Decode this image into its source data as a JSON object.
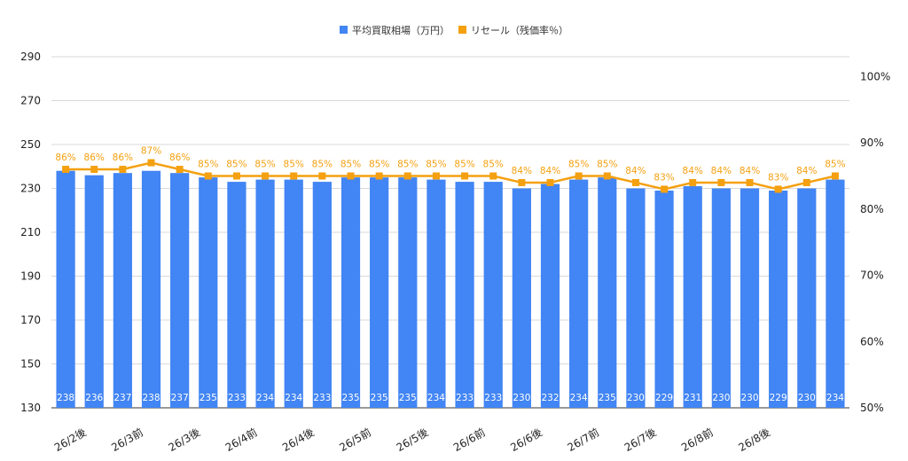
{
  "chart_data": {
    "type": "bar+line",
    "legend": {
      "placement": "top-center",
      "bar_label": "平均買取相場（万円）",
      "line_label": "リセール（残価率％）"
    },
    "x_tick_labels": [
      "26/2後",
      "26/3前",
      "26/3後",
      "26/4前",
      "26/4後",
      "26/5前",
      "26/5後",
      "26/6前",
      "26/6後",
      "26/7前",
      "26/7後",
      "26/8前",
      "26/8後"
    ],
    "left_axis": {
      "ticks": [
        "290",
        "270",
        "250",
        "230",
        "210",
        "190",
        "170",
        "150",
        "130"
      ],
      "ylim": [
        130,
        290
      ]
    },
    "right_axis": {
      "ticks": [
        "100%",
        "90%",
        "80%",
        "70%",
        "60%",
        "50%"
      ],
      "ylim": [
        50,
        103
      ]
    },
    "series": [
      {
        "name": "平均買取相場（万円）",
        "kind": "bar",
        "color": "#4285f4",
        "values": [
          238,
          236,
          237,
          238,
          237,
          235,
          233,
          234,
          234,
          233,
          235,
          235,
          235,
          234,
          233,
          233,
          230,
          232,
          234,
          235,
          230,
          229,
          231,
          230,
          230,
          229,
          230,
          234
        ],
        "labels": [
          "238",
          "236",
          "237",
          "238",
          "237",
          "235",
          "233",
          "234",
          "234",
          "233",
          "235",
          "235",
          "235",
          "234",
          "233",
          "233",
          "230",
          "232",
          "234",
          "235",
          "230",
          "229",
          "231",
          "230",
          "230",
          "229",
          "230",
          "234"
        ]
      },
      {
        "name": "リセール（残価率％）",
        "kind": "line",
        "color": "#f4a010",
        "values": [
          86,
          86,
          86,
          87,
          86,
          85,
          85,
          85,
          85,
          85,
          85,
          85,
          85,
          85,
          85,
          85,
          84,
          84,
          85,
          85,
          84,
          83,
          84,
          84,
          84,
          83,
          84,
          85
        ],
        "labels": [
          "86%",
          "86%",
          "86%",
          "87%",
          "86%",
          "85%",
          "85%",
          "85%",
          "85%",
          "85%",
          "85%",
          "85%",
          "85%",
          "85%",
          "85%",
          "85%",
          "84%",
          "84%",
          "85%",
          "85%",
          "84%",
          "83%",
          "84%",
          "84%",
          "84%",
          "83%",
          "84%",
          "85%"
        ]
      }
    ],
    "grid": true
  }
}
